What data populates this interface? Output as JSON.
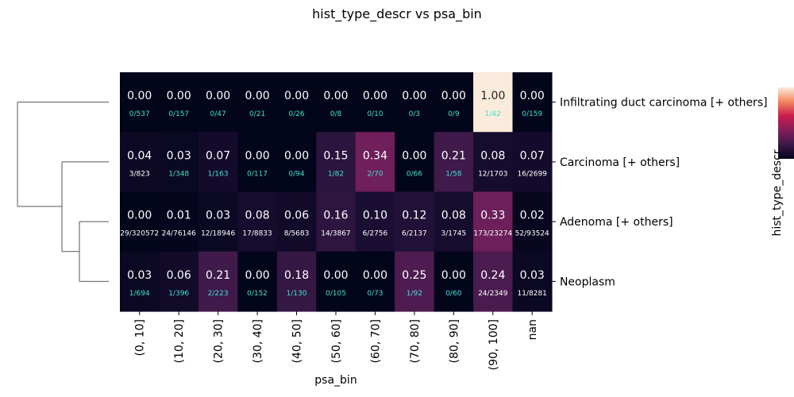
{
  "chart_data": {
    "type": "heatmap",
    "title": "hist_type_descr vs psa_bin",
    "xlabel": "psa_bin",
    "ylabel": "hist_type_descr",
    "colorbar_label": "hist_type_descr",
    "colorscale": "rocket",
    "value_range": [
      0,
      1
    ],
    "dendrogram": "rows, left side",
    "columns": [
      "(0, 10]",
      "(10, 20]",
      "(20, 30]",
      "(30, 40]",
      "(40, 50]",
      "(50, 60]",
      "(60, 70]",
      "(70, 80]",
      "(80, 90]",
      "(90, 100]",
      "nan"
    ],
    "rows": [
      {
        "label": "Infiltrating duct carcinoma [+ others]",
        "values": [
          0.0,
          0.0,
          0.0,
          0.0,
          0.0,
          0.0,
          0.0,
          0.0,
          0.0,
          1.0,
          0.0
        ],
        "counts": [
          "0/537",
          "0/157",
          "0/47",
          "0/21",
          "0/26",
          "0/8",
          "0/10",
          "0/3",
          "0/9",
          "1/42",
          "0/159"
        ]
      },
      {
        "label": "Carcinoma [+ others]",
        "values": [
          0.04,
          0.03,
          0.07,
          0.0,
          0.0,
          0.15,
          0.34,
          0.0,
          0.21,
          0.08,
          0.07
        ],
        "counts": [
          "3/823",
          "1/348",
          "1/163",
          "0/117",
          "0/94",
          "1/82",
          "2/70",
          "0/66",
          "1/58",
          "12/1703",
          "16/2699"
        ]
      },
      {
        "label": "Adenoma [+ others]",
        "values": [
          0.0,
          0.01,
          0.03,
          0.08,
          0.06,
          0.16,
          0.1,
          0.12,
          0.08,
          0.33,
          0.02
        ],
        "counts": [
          "29/320572",
          "24/76146",
          "12/18946",
          "17/8833",
          "8/5683",
          "14/3867",
          "6/2756",
          "6/2137",
          "3/1745",
          "173/23274",
          "52/93524"
        ]
      },
      {
        "label": "Neoplasm",
        "values": [
          0.03,
          0.06,
          0.21,
          0.0,
          0.18,
          0.0,
          0.0,
          0.25,
          0.0,
          0.24,
          0.03
        ],
        "counts": [
          "1/694",
          "1/396",
          "2/223",
          "0/152",
          "1/130",
          "0/105",
          "0/73",
          "1/92",
          "0/60",
          "24/2349",
          "11/8281"
        ]
      }
    ]
  },
  "colors": {
    "low_count_text": "#40e0d0",
    "high_count_text": "#ffffff",
    "dendrogram_line": "#555555"
  }
}
